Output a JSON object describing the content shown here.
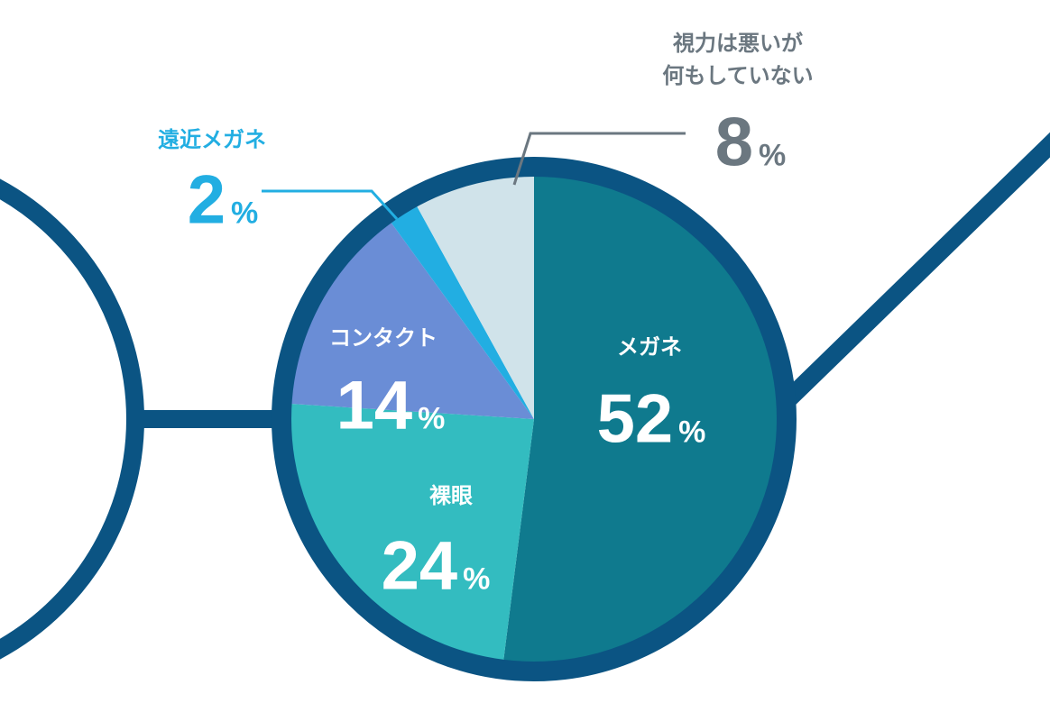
{
  "chart_data": {
    "type": "pie",
    "categories": [
      "メガネ",
      "裸眼",
      "コンタクト",
      "遠近メガネ",
      "視力は悪いが\n何もしていない"
    ],
    "values": [
      52,
      24,
      14,
      2,
      8
    ],
    "value_labels": [
      "52%",
      "24%",
      "14%",
      "2%",
      "8%"
    ],
    "colors": [
      "#0f7a8e",
      "#33bcc0",
      "#6a8dd6",
      "#22aee2",
      "#d0e3ea"
    ]
  }
}
